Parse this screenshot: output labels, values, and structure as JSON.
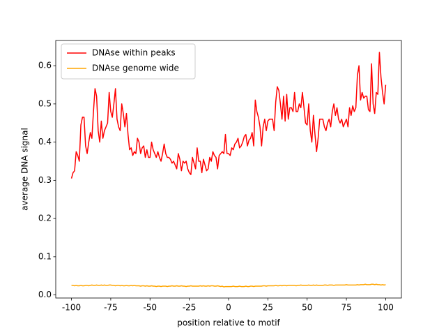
{
  "chart_data": {
    "type": "line",
    "xlabel": "position relative to motif",
    "ylabel": "average DNA signal",
    "x": [
      -100,
      -99,
      -98,
      -97,
      -96,
      -95,
      -94,
      -93,
      -92,
      -91,
      -90,
      -89,
      -88,
      -87,
      -86,
      -85,
      -84,
      -83,
      -82,
      -81,
      -80,
      -79,
      -78,
      -77,
      -76,
      -75,
      -74,
      -73,
      -72,
      -71,
      -70,
      -69,
      -68,
      -67,
      -66,
      -65,
      -64,
      -63,
      -62,
      -61,
      -60,
      -59,
      -58,
      -57,
      -56,
      -55,
      -54,
      -53,
      -52,
      -51,
      -50,
      -49,
      -48,
      -47,
      -46,
      -45,
      -44,
      -43,
      -42,
      -41,
      -40,
      -39,
      -38,
      -37,
      -36,
      -35,
      -34,
      -33,
      -32,
      -31,
      -30,
      -29,
      -28,
      -27,
      -26,
      -25,
      -24,
      -23,
      -22,
      -21,
      -20,
      -19,
      -18,
      -17,
      -16,
      -15,
      -14,
      -13,
      -12,
      -11,
      -10,
      -9,
      -8,
      -7,
      -6,
      -5,
      -4,
      -3,
      -2,
      -1,
      0,
      1,
      2,
      3,
      4,
      5,
      6,
      7,
      8,
      9,
      10,
      11,
      12,
      13,
      14,
      15,
      16,
      17,
      18,
      19,
      20,
      21,
      22,
      23,
      24,
      25,
      26,
      27,
      28,
      29,
      30,
      31,
      32,
      33,
      34,
      35,
      36,
      37,
      38,
      39,
      40,
      41,
      42,
      43,
      44,
      45,
      46,
      47,
      48,
      49,
      50,
      51,
      52,
      53,
      54,
      55,
      56,
      57,
      58,
      59,
      60,
      61,
      62,
      63,
      64,
      65,
      66,
      67,
      68,
      69,
      70,
      71,
      72,
      73,
      74,
      75,
      76,
      77,
      78,
      79,
      80,
      81,
      82,
      83,
      84,
      85,
      86,
      87,
      88,
      89,
      90,
      91,
      92,
      93,
      94,
      95,
      96,
      97,
      98,
      99,
      100
    ],
    "series": [
      {
        "name": "DNAse within peaks",
        "color": "#ff0000",
        "values": [
          0.305,
          0.32,
          0.325,
          0.375,
          0.365,
          0.35,
          0.445,
          0.465,
          0.465,
          0.39,
          0.37,
          0.4,
          0.425,
          0.41,
          0.48,
          0.54,
          0.52,
          0.43,
          0.4,
          0.455,
          0.41,
          0.43,
          0.44,
          0.45,
          0.53,
          0.48,
          0.465,
          0.5,
          0.54,
          0.46,
          0.44,
          0.43,
          0.5,
          0.475,
          0.44,
          0.475,
          0.42,
          0.38,
          0.385,
          0.365,
          0.375,
          0.37,
          0.41,
          0.4,
          0.37,
          0.385,
          0.39,
          0.36,
          0.38,
          0.36,
          0.36,
          0.4,
          0.38,
          0.37,
          0.36,
          0.375,
          0.36,
          0.35,
          0.37,
          0.395,
          0.37,
          0.36,
          0.36,
          0.355,
          0.345,
          0.35,
          0.34,
          0.33,
          0.37,
          0.355,
          0.325,
          0.35,
          0.345,
          0.35,
          0.33,
          0.32,
          0.315,
          0.36,
          0.345,
          0.33,
          0.385,
          0.35,
          0.35,
          0.32,
          0.355,
          0.34,
          0.325,
          0.33,
          0.36,
          0.35,
          0.375,
          0.365,
          0.36,
          0.33,
          0.365,
          0.37,
          0.375,
          0.37,
          0.42,
          0.37,
          0.37,
          0.365,
          0.385,
          0.38,
          0.395,
          0.4,
          0.41,
          0.385,
          0.39,
          0.4,
          0.415,
          0.42,
          0.39,
          0.405,
          0.41,
          0.425,
          0.39,
          0.51,
          0.48,
          0.465,
          0.44,
          0.39,
          0.44,
          0.46,
          0.43,
          0.455,
          0.46,
          0.46,
          0.46,
          0.43,
          0.505,
          0.545,
          0.535,
          0.5,
          0.46,
          0.52,
          0.455,
          0.525,
          0.46,
          0.49,
          0.49,
          0.48,
          0.53,
          0.48,
          0.48,
          0.5,
          0.49,
          0.53,
          0.49,
          0.45,
          0.445,
          0.5,
          0.43,
          0.4,
          0.47,
          0.42,
          0.375,
          0.41,
          0.46,
          0.46,
          0.46,
          0.44,
          0.43,
          0.45,
          0.46,
          0.44,
          0.48,
          0.5,
          0.47,
          0.49,
          0.46,
          0.45,
          0.46,
          0.44,
          0.45,
          0.46,
          0.44,
          0.49,
          0.47,
          0.495,
          0.48,
          0.49,
          0.575,
          0.6,
          0.51,
          0.53,
          0.515,
          0.52,
          0.52,
          0.485,
          0.48,
          0.605,
          0.5,
          0.475,
          0.53,
          0.525,
          0.635,
          0.57,
          0.53,
          0.5,
          0.55
        ]
      },
      {
        "name": "DNAse genome wide",
        "color": "#ffa500",
        "values": [
          0.025,
          0.025,
          0.024,
          0.025,
          0.024,
          0.024,
          0.025,
          0.024,
          0.024,
          0.025,
          0.025,
          0.024,
          0.025,
          0.026,
          0.025,
          0.025,
          0.026,
          0.025,
          0.025,
          0.026,
          0.025,
          0.026,
          0.025,
          0.025,
          0.026,
          0.026,
          0.025,
          0.025,
          0.024,
          0.025,
          0.025,
          0.024,
          0.025,
          0.024,
          0.024,
          0.025,
          0.024,
          0.024,
          0.025,
          0.024,
          0.025,
          0.024,
          0.024,
          0.024,
          0.023,
          0.024,
          0.024,
          0.023,
          0.024,
          0.023,
          0.023,
          0.024,
          0.023,
          0.023,
          0.022,
          0.023,
          0.023,
          0.022,
          0.023,
          0.023,
          0.023,
          0.022,
          0.023,
          0.023,
          0.024,
          0.023,
          0.023,
          0.024,
          0.023,
          0.023,
          0.024,
          0.023,
          0.023,
          0.022,
          0.023,
          0.023,
          0.024,
          0.023,
          0.023,
          0.023,
          0.023,
          0.023,
          0.024,
          0.023,
          0.024,
          0.023,
          0.023,
          0.024,
          0.023,
          0.024,
          0.024,
          0.023,
          0.023,
          0.024,
          0.023,
          0.022,
          0.023,
          0.021,
          0.022,
          0.022,
          0.022,
          0.022,
          0.022,
          0.023,
          0.022,
          0.022,
          0.022,
          0.023,
          0.022,
          0.022,
          0.022,
          0.023,
          0.022,
          0.022,
          0.023,
          0.023,
          0.022,
          0.023,
          0.023,
          0.023,
          0.023,
          0.023,
          0.024,
          0.024,
          0.023,
          0.024,
          0.024,
          0.024,
          0.024,
          0.024,
          0.025,
          0.024,
          0.024,
          0.025,
          0.024,
          0.025,
          0.025,
          0.024,
          0.025,
          0.025,
          0.025,
          0.025,
          0.025,
          0.024,
          0.025,
          0.025,
          0.026,
          0.025,
          0.025,
          0.025,
          0.025,
          0.026,
          0.025,
          0.025,
          0.026,
          0.025,
          0.026,
          0.025,
          0.025,
          0.025,
          0.025,
          0.026,
          0.026,
          0.025,
          0.026,
          0.026,
          0.026,
          0.025,
          0.026,
          0.026,
          0.026,
          0.026,
          0.026,
          0.026,
          0.026,
          0.027,
          0.026,
          0.026,
          0.026,
          0.026,
          0.026,
          0.026,
          0.027,
          0.026,
          0.027,
          0.027,
          0.027,
          0.028,
          0.027,
          0.027,
          0.027,
          0.028,
          0.028,
          0.027,
          0.028,
          0.027,
          0.027,
          0.026,
          0.027,
          0.026,
          0.027
        ]
      }
    ],
    "xlim": [
      -110,
      110
    ],
    "xticks": [
      -100,
      -75,
      -50,
      -25,
      0,
      25,
      50,
      75,
      100
    ],
    "ylim": [
      -0.008,
      0.666
    ],
    "yticks": [
      {
        "value": 0,
        "label": "0.0"
      },
      0.1,
      0.2,
      0.3,
      0.4,
      0.5,
      0.6
    ],
    "legend": "upper left"
  }
}
